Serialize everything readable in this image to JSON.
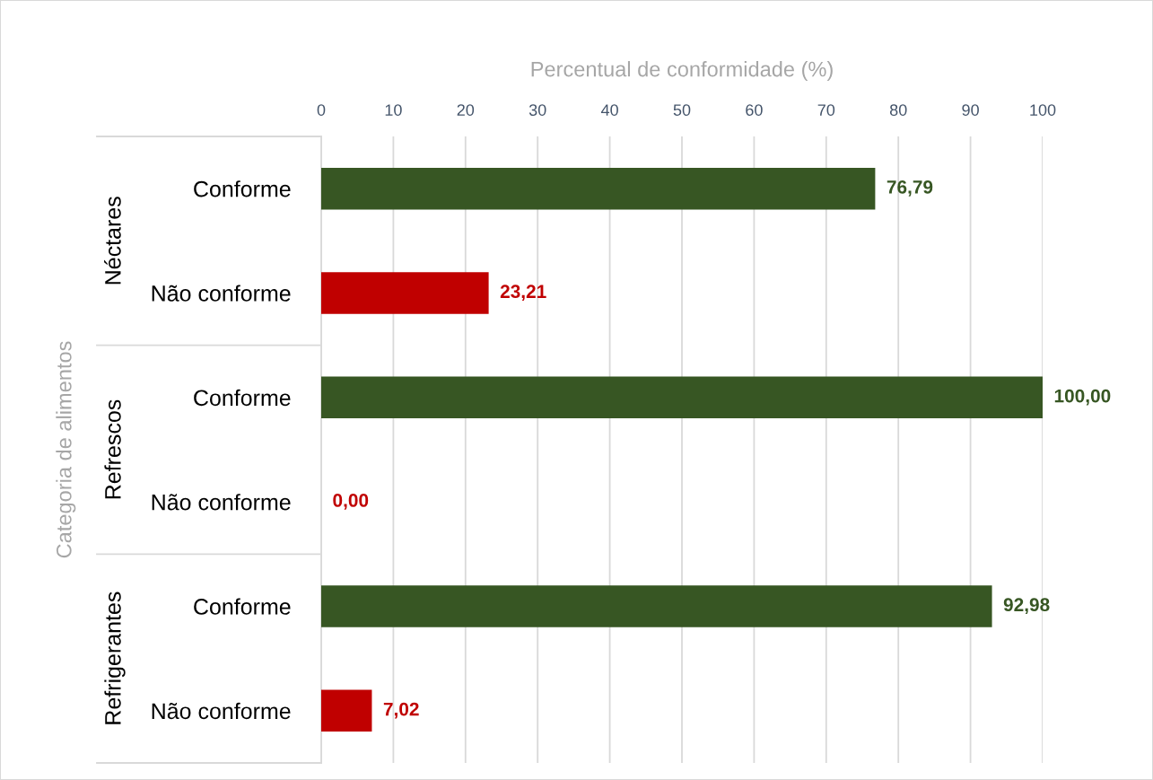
{
  "chart_data": {
    "type": "bar",
    "orientation": "horizontal",
    "xlabel": "Percentual de conformidade (%)",
    "ylabel": "Categoria de alimentos",
    "categories": [
      "Conforme",
      "Não conforme",
      "Conforme",
      "Não conforme",
      "Conforme",
      "Não conforme"
    ],
    "values": [
      76.79,
      23.21,
      100,
      0,
      92.98,
      7.02
    ],
    "colors": [
      "#375623",
      "#c00000",
      "#375623",
      "#c00000",
      "#375623",
      "#c00000"
    ],
    "value_labels": [
      "76,79",
      "23,21",
      "100,00",
      "0,00",
      "92,98",
      "7,02"
    ],
    "xlim": [
      0,
      100
    ],
    "xticks": [
      0,
      10,
      20,
      30,
      40,
      50,
      60,
      70,
      80,
      90,
      100
    ],
    "grid": "x",
    "annotations": [
      "Néctares",
      "Refrescos",
      "Refrigerantes"
    ]
  }
}
